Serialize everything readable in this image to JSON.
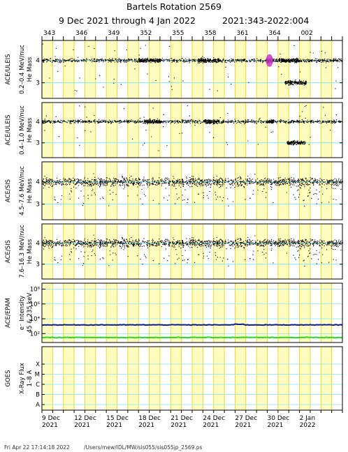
{
  "title": "Bartels Rotation 2569",
  "subtitle_dates": "9 Dec 2021 through 4 Jan 2022",
  "subtitle_doy": "2021:343-2022:004",
  "footer_timestamp": "Fri Apr 22 17:14:18 2022",
  "footer_path": "/Users/mew/IDL/MW/sis055/sis055jp_2569.ps",
  "colors": {
    "band_yellow": "#fffcc0",
    "grid_day": "#f0d000",
    "grid_cyan": "#7ee8f0",
    "points": "#000000",
    "electron_high": "#0a1e9a",
    "electron_low": "#22dd22",
    "burst": "#cc33cc"
  },
  "chart_data": [
    {
      "type": "scatter",
      "instrument": "ACE/ULEIS",
      "ylabel": "0.2–0.4 MeV/nuc",
      "ylabel2": "He Mass",
      "yticks": [
        "3",
        "4"
      ],
      "ylim": [
        2.3,
        4.9
      ],
      "xrange_doy": [
        343,
        371
      ],
      "series": [
        {
          "mass": 4,
          "dense_windows_doy": [
            [
              352,
              354
            ],
            [
              357.5,
              359.5
            ],
            [
              363.8,
              364.6
            ],
            [
              365.0,
              367.0
            ]
          ]
        },
        {
          "mass": 3,
          "dense_windows_doy": [
            [
              365.6,
              367.6
            ]
          ]
        }
      ]
    },
    {
      "type": "scatter",
      "instrument": "ACE/ULEIS",
      "ylabel": "0.4–1.0 MeV/nuc",
      "ylabel2": "He Mass",
      "yticks": [
        "3",
        "4"
      ],
      "ylim": [
        2.3,
        4.9
      ],
      "xrange_doy": [
        343,
        371
      ],
      "series": [
        {
          "mass": 4,
          "dense_windows_doy": [
            [
              352.5,
              354
            ],
            [
              358,
              359.5
            ],
            [
              363.8,
              364.6
            ]
          ]
        },
        {
          "mass": 3,
          "dense_windows_doy": [
            [
              365.8,
              367.5
            ]
          ]
        }
      ]
    },
    {
      "type": "scatter",
      "instrument": "ACE/SIS",
      "ylabel": "4.5–7.6 MeV/nuc",
      "ylabel2": "He Mass",
      "yticks": [
        "3",
        "4"
      ],
      "ylim": [
        2.3,
        4.9
      ],
      "xrange_doy": [
        343,
        371
      ]
    },
    {
      "type": "scatter",
      "instrument": "ACE/SIS",
      "ylabel": "7.6–16.3 MeV/nuc",
      "ylabel2": "He Mass",
      "yticks": [
        "3",
        "4"
      ],
      "ylim": [
        2.3,
        4.9
      ],
      "xrange_doy": [
        343,
        371
      ]
    },
    {
      "type": "line",
      "instrument": "ACE/EPAM",
      "ylabel": "e⁻ Intensity",
      "ylabel2": "45 & 235 keV",
      "yticks": [
        "10²",
        "10⁴",
        "10⁶",
        "10⁸"
      ],
      "ylim_log10": [
        0.8,
        8.8
      ],
      "log_scale": true,
      "series": [
        {
          "channel": "45 keV",
          "level": 1500
        },
        {
          "channel": "235 keV",
          "level": 30
        }
      ]
    },
    {
      "type": "line",
      "instrument": "GOES",
      "ylabel": "X-Ray Flux",
      "ylabel2": "1–8 A",
      "yticks": [
        "A",
        "B",
        "C",
        "M",
        "X"
      ],
      "series": []
    }
  ],
  "axis": {
    "top_doy_labels": [
      "343",
      "346",
      "349",
      "352",
      "355",
      "358",
      "361",
      "364",
      "002"
    ],
    "bottom_dates": [
      {
        "day": "9 Dec",
        "year": "2021"
      },
      {
        "day": "12 Dec",
        "year": "2021"
      },
      {
        "day": "15 Dec",
        "year": "2021"
      },
      {
        "day": "18 Dec",
        "year": "2021"
      },
      {
        "day": "21 Dec",
        "year": "2021"
      },
      {
        "day": "24 Dec",
        "year": "2021"
      },
      {
        "day": "27 Dec",
        "year": "2021"
      },
      {
        "day": "30 Dec",
        "year": "2021"
      },
      {
        "day": "2 Jan",
        "year": "2022"
      }
    ]
  }
}
